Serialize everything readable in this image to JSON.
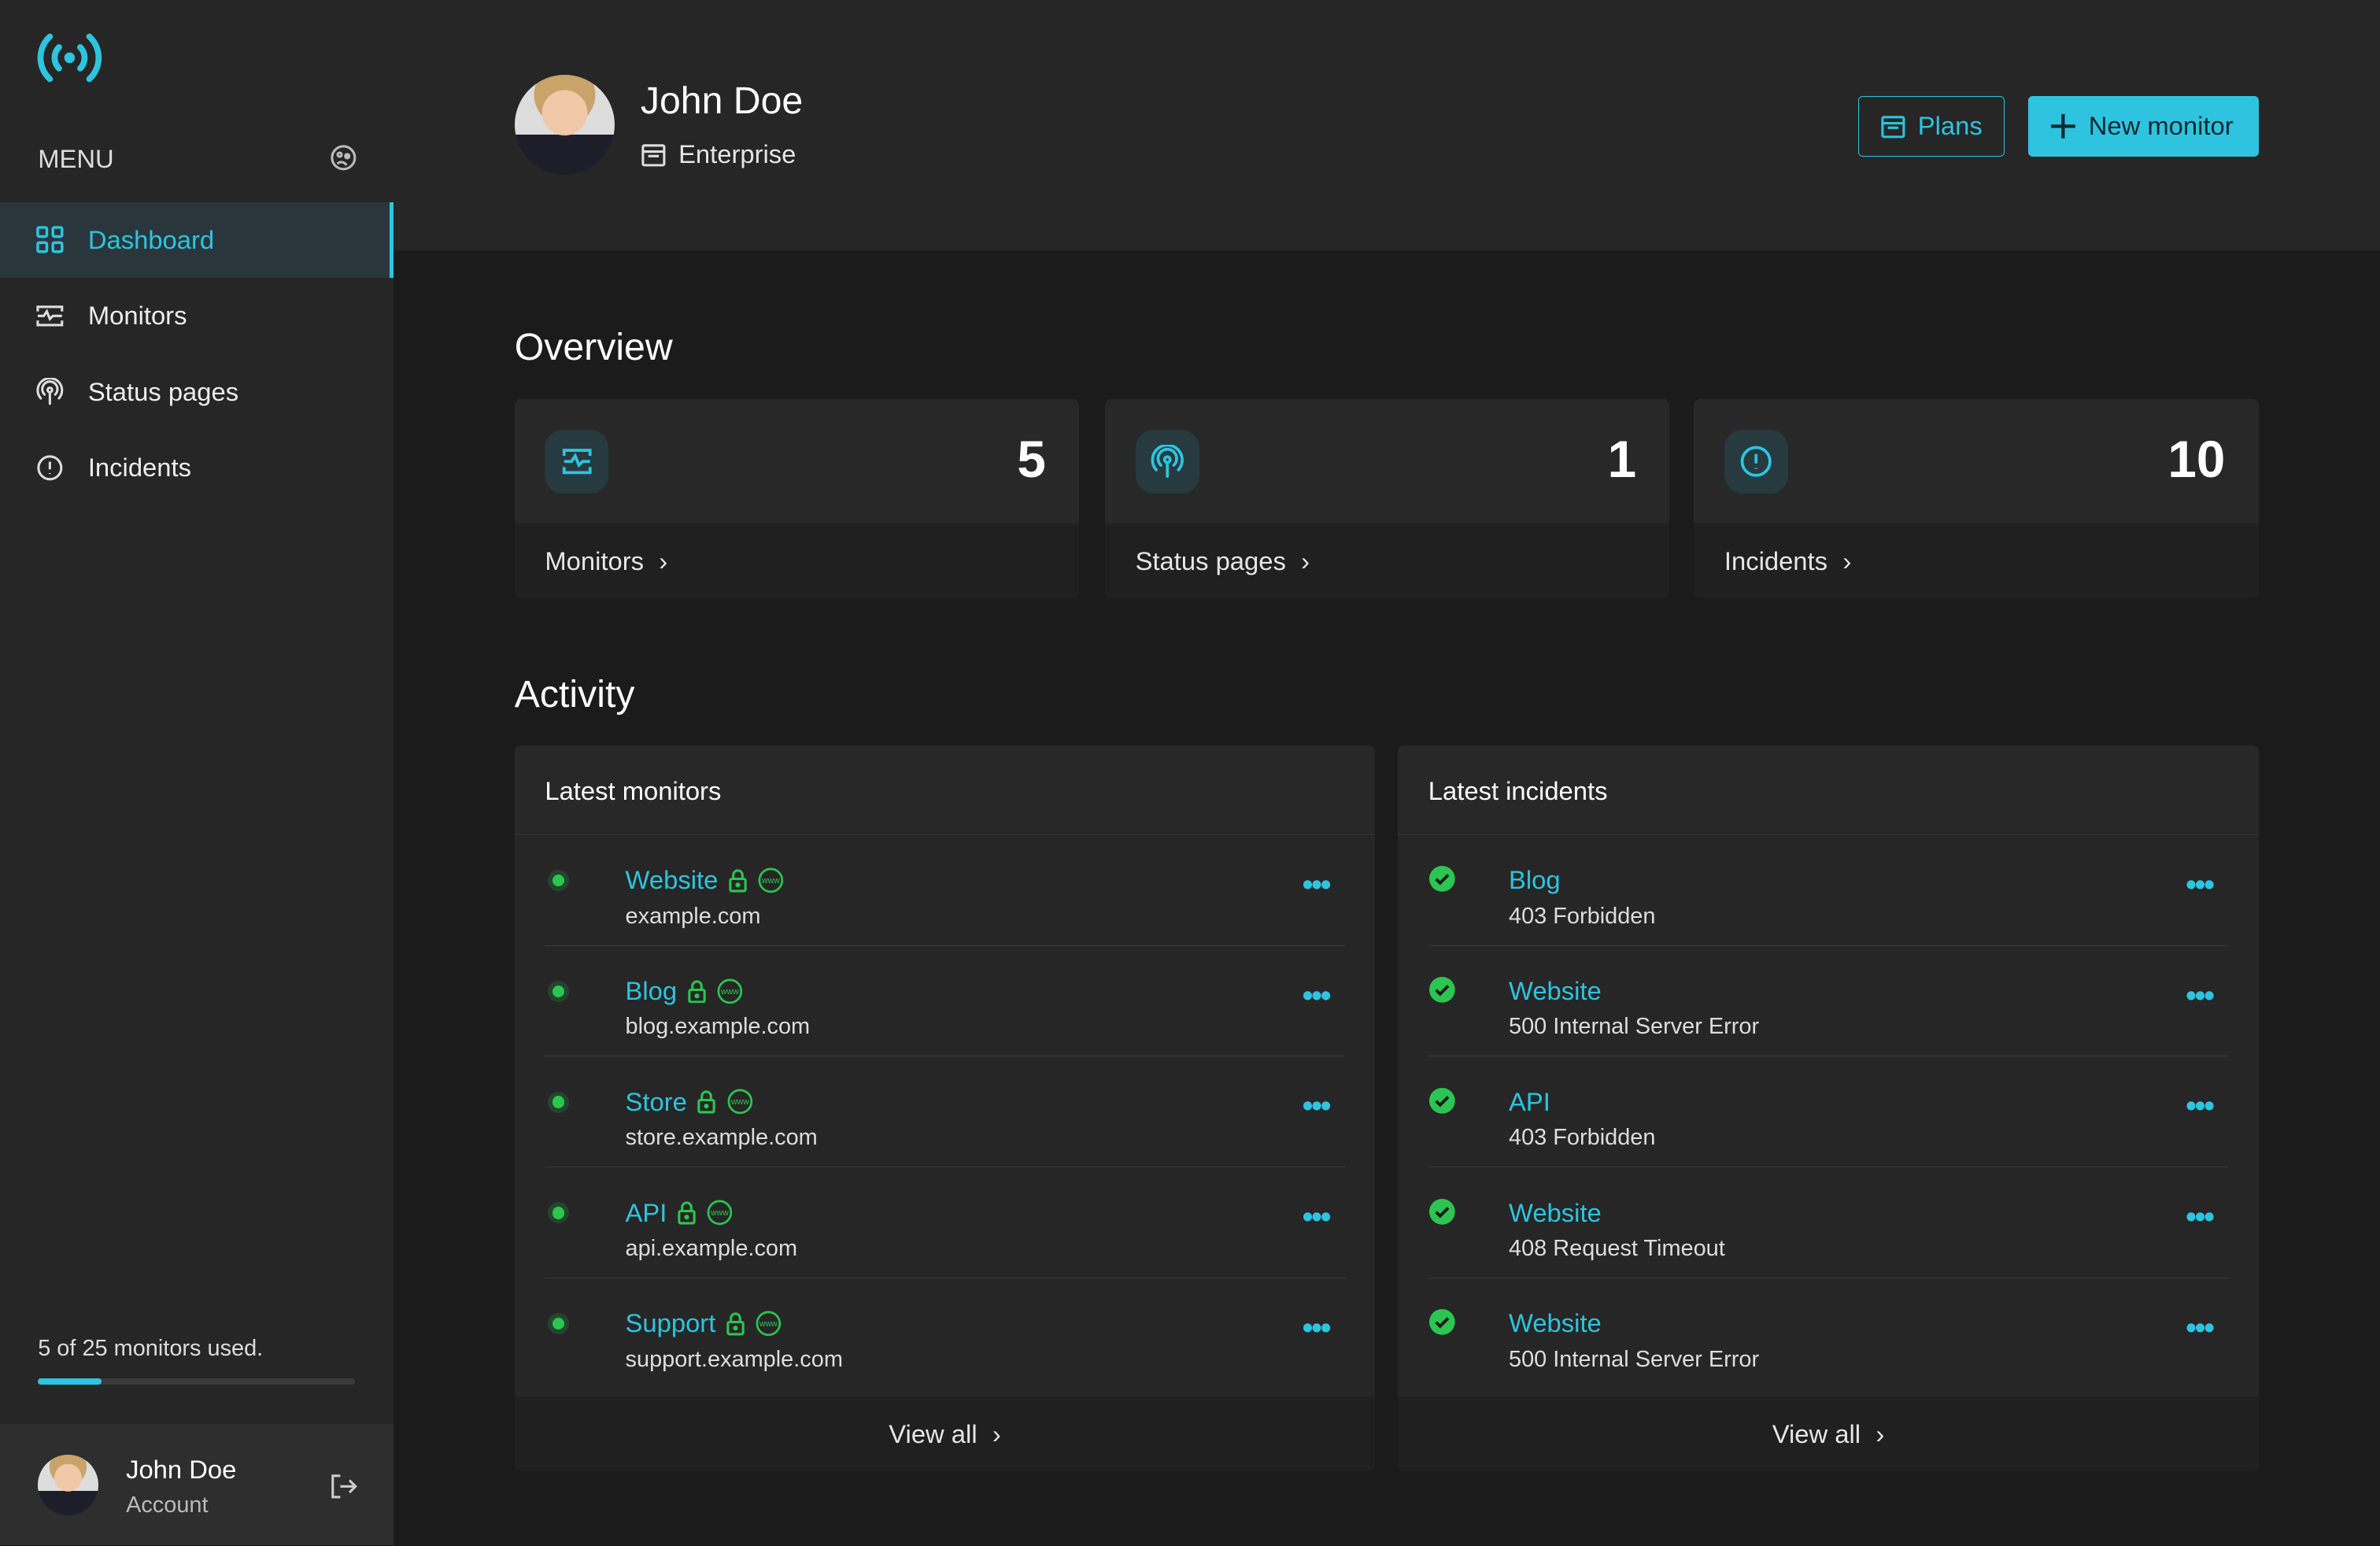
{
  "colors": {
    "accent": "#2ec4e0",
    "success": "#2cc551",
    "sidebar": "#262626",
    "background": "#1b1b1b"
  },
  "sidebar": {
    "menu_label": "MENU",
    "items": [
      {
        "label": "Dashboard",
        "icon": "grid-icon",
        "active": true
      },
      {
        "label": "Monitors",
        "icon": "monitor-pulse-icon"
      },
      {
        "label": "Status pages",
        "icon": "broadcast-icon"
      },
      {
        "label": "Incidents",
        "icon": "alert-circle-icon"
      }
    ],
    "usage_text": "5 of 25 monitors used.",
    "usage_fraction": 0.2,
    "account": {
      "name": "John Doe",
      "sub": "Account"
    }
  },
  "header": {
    "name": "John Doe",
    "plan": "Enterprise",
    "plans_button": "Plans",
    "new_monitor_button": "New monitor"
  },
  "overview": {
    "title": "Overview",
    "cards": [
      {
        "label": "Monitors",
        "value": "5"
      },
      {
        "label": "Status pages",
        "value": "1"
      },
      {
        "label": "Incidents",
        "value": "10"
      }
    ]
  },
  "activity": {
    "title": "Activity",
    "monitors": {
      "title": "Latest monitors",
      "view_all": "View all",
      "items": [
        {
          "name": "Website",
          "url": "example.com"
        },
        {
          "name": "Blog",
          "url": "blog.example.com"
        },
        {
          "name": "Store",
          "url": "store.example.com"
        },
        {
          "name": "API",
          "url": "api.example.com"
        },
        {
          "name": "Support",
          "url": "support.example.com"
        }
      ]
    },
    "incidents": {
      "title": "Latest incidents",
      "view_all": "View all",
      "items": [
        {
          "name": "Blog",
          "status": "403 Forbidden"
        },
        {
          "name": "Website",
          "status": "500 Internal Server Error"
        },
        {
          "name": "API",
          "status": "403 Forbidden"
        },
        {
          "name": "Website",
          "status": "408 Request Timeout"
        },
        {
          "name": "Website",
          "status": "500 Internal Server Error"
        }
      ]
    }
  }
}
